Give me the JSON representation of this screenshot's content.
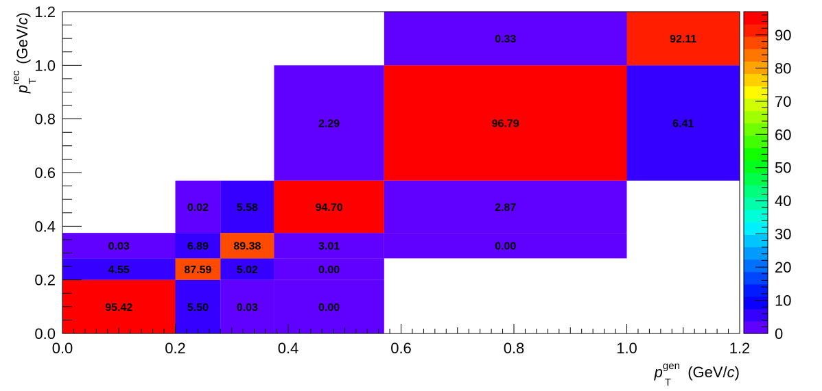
{
  "chart_data": {
    "type": "heatmap",
    "title": "",
    "xlabel": {
      "symbol": "p",
      "superscript": "gen",
      "subscript": "T",
      "unit_prefix": " (GeV/",
      "unit_var": "c",
      "unit_suffix": ")"
    },
    "ylabel": {
      "symbol": "p",
      "superscript": "rec",
      "subscript": "T",
      "unit_prefix": " (GeV/",
      "unit_var": "c",
      "unit_suffix": ")"
    },
    "xlim": [
      0.0,
      1.2
    ],
    "ylim": [
      0.0,
      1.2
    ],
    "zlim": [
      0,
      97
    ],
    "x_ticks": [
      "0.0",
      "0.2",
      "0.4",
      "0.6",
      "0.8",
      "1.0",
      "1.2"
    ],
    "y_ticks": [
      "0.0",
      "0.2",
      "0.4",
      "0.6",
      "0.8",
      "1.0",
      "1.2"
    ],
    "z_ticks": [
      "0",
      "10",
      "20",
      "30",
      "40",
      "50",
      "60",
      "70",
      "80",
      "90"
    ],
    "bin_edges_x": [
      0.0,
      0.2,
      0.28,
      0.375,
      0.57,
      1.0,
      1.2
    ],
    "bin_edges_y": [
      0.0,
      0.2,
      0.28,
      0.375,
      0.57,
      1.0,
      1.2
    ],
    "cells": [
      {
        "x0": 0.0,
        "x1": 0.2,
        "y0": 0.0,
        "y1": 0.2,
        "value": 95.42,
        "label": "95.42"
      },
      {
        "x0": 0.0,
        "x1": 0.2,
        "y0": 0.2,
        "y1": 0.28,
        "value": 4.55,
        "label": "4.55"
      },
      {
        "x0": 0.0,
        "x1": 0.2,
        "y0": 0.28,
        "y1": 0.375,
        "value": 0.03,
        "label": "0.03"
      },
      {
        "x0": 0.2,
        "x1": 0.28,
        "y0": 0.0,
        "y1": 0.2,
        "value": 5.5,
        "label": "5.50"
      },
      {
        "x0": 0.2,
        "x1": 0.28,
        "y0": 0.2,
        "y1": 0.28,
        "value": 87.59,
        "label": "87.59"
      },
      {
        "x0": 0.2,
        "x1": 0.28,
        "y0": 0.28,
        "y1": 0.375,
        "value": 6.89,
        "label": "6.89"
      },
      {
        "x0": 0.2,
        "x1": 0.28,
        "y0": 0.375,
        "y1": 0.57,
        "value": 0.02,
        "label": "0.02"
      },
      {
        "x0": 0.28,
        "x1": 0.375,
        "y0": 0.0,
        "y1": 0.2,
        "value": 0.03,
        "label": "0.03"
      },
      {
        "x0": 0.28,
        "x1": 0.375,
        "y0": 0.2,
        "y1": 0.28,
        "value": 5.02,
        "label": "5.02"
      },
      {
        "x0": 0.28,
        "x1": 0.375,
        "y0": 0.28,
        "y1": 0.375,
        "value": 89.38,
        "label": "89.38"
      },
      {
        "x0": 0.28,
        "x1": 0.375,
        "y0": 0.375,
        "y1": 0.57,
        "value": 5.58,
        "label": "5.58"
      },
      {
        "x0": 0.375,
        "x1": 0.57,
        "y0": 0.0,
        "y1": 0.2,
        "value": 0.0,
        "label": "0.00"
      },
      {
        "x0": 0.375,
        "x1": 0.57,
        "y0": 0.2,
        "y1": 0.28,
        "value": 0.0,
        "label": "0.00"
      },
      {
        "x0": 0.375,
        "x1": 0.57,
        "y0": 0.28,
        "y1": 0.375,
        "value": 3.01,
        "label": "3.01"
      },
      {
        "x0": 0.375,
        "x1": 0.57,
        "y0": 0.375,
        "y1": 0.57,
        "value": 94.7,
        "label": "94.70"
      },
      {
        "x0": 0.375,
        "x1": 0.57,
        "y0": 0.57,
        "y1": 1.0,
        "value": 2.29,
        "label": "2.29"
      },
      {
        "x0": 0.57,
        "x1": 1.0,
        "y0": 0.28,
        "y1": 0.375,
        "value": 0.0,
        "label": "0.00"
      },
      {
        "x0": 0.57,
        "x1": 1.0,
        "y0": 0.375,
        "y1": 0.57,
        "value": 2.87,
        "label": "2.87"
      },
      {
        "x0": 0.57,
        "x1": 1.0,
        "y0": 0.57,
        "y1": 1.0,
        "value": 96.79,
        "label": "96.79"
      },
      {
        "x0": 0.57,
        "x1": 1.0,
        "y0": 1.0,
        "y1": 1.2,
        "value": 0.33,
        "label": "0.33"
      },
      {
        "x0": 1.0,
        "x1": 1.2,
        "y0": 0.57,
        "y1": 1.0,
        "value": 6.41,
        "label": "6.41"
      },
      {
        "x0": 1.0,
        "x1": 1.2,
        "y0": 1.0,
        "y1": 1.2,
        "value": 92.11,
        "label": "92.11"
      }
    ],
    "palette": [
      "#6000ff",
      "#3500ff",
      "#0a00ff",
      "#001bff",
      "#0046ff",
      "#0071ff",
      "#009bff",
      "#00c5ff",
      "#00f0ff",
      "#00ffd9",
      "#00ffaa",
      "#00ff7a",
      "#00ff4b",
      "#00ff1c",
      "#12ff00",
      "#41ff00",
      "#70ff00",
      "#a0ff00",
      "#cfff00",
      "#fffa00",
      "#ffcf00",
      "#ffa300",
      "#ff7700",
      "#ff4b00",
      "#ff1f00",
      "#ff0000"
    ]
  }
}
